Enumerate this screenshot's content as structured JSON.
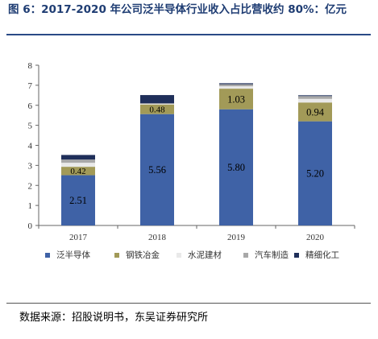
{
  "title": "图 6：2017-2020 年公司泛半导体行业收入占比营收约 80%：亿元",
  "source": "数据来源：招股说明书，东吴证券研究所",
  "chart_data": {
    "type": "bar",
    "stacked": true,
    "categories": [
      "2017",
      "2018",
      "2019",
      "2020"
    ],
    "ylim": [
      0,
      8
    ],
    "yticks": [
      0,
      1,
      2,
      3,
      4,
      5,
      6,
      7,
      8
    ],
    "grid": false,
    "legend_position": "bottom",
    "series": [
      {
        "name": "泛半导体",
        "values": [
          2.51,
          5.56,
          5.8,
          5.2
        ],
        "color": "#3f62a6",
        "labeled": true,
        "label_color": "#ffffff"
      },
      {
        "name": "钢铁冶金",
        "values": [
          0.42,
          0.48,
          1.03,
          0.94
        ],
        "color": "#a29a58",
        "labeled": true,
        "label_color": "#000000"
      },
      {
        "name": "水泥建材",
        "values": [
          0.2,
          0.03,
          0.12,
          0.18
        ],
        "color": "#e9e9e9",
        "labeled": false
      },
      {
        "name": "汽车制造",
        "values": [
          0.16,
          0.03,
          0.1,
          0.14
        ],
        "color": "#a8a8a8",
        "labeled": false
      },
      {
        "name": "精细化工",
        "values": [
          0.23,
          0.41,
          0.05,
          0.04
        ],
        "color": "#1f2f5a",
        "labeled": false
      }
    ]
  }
}
